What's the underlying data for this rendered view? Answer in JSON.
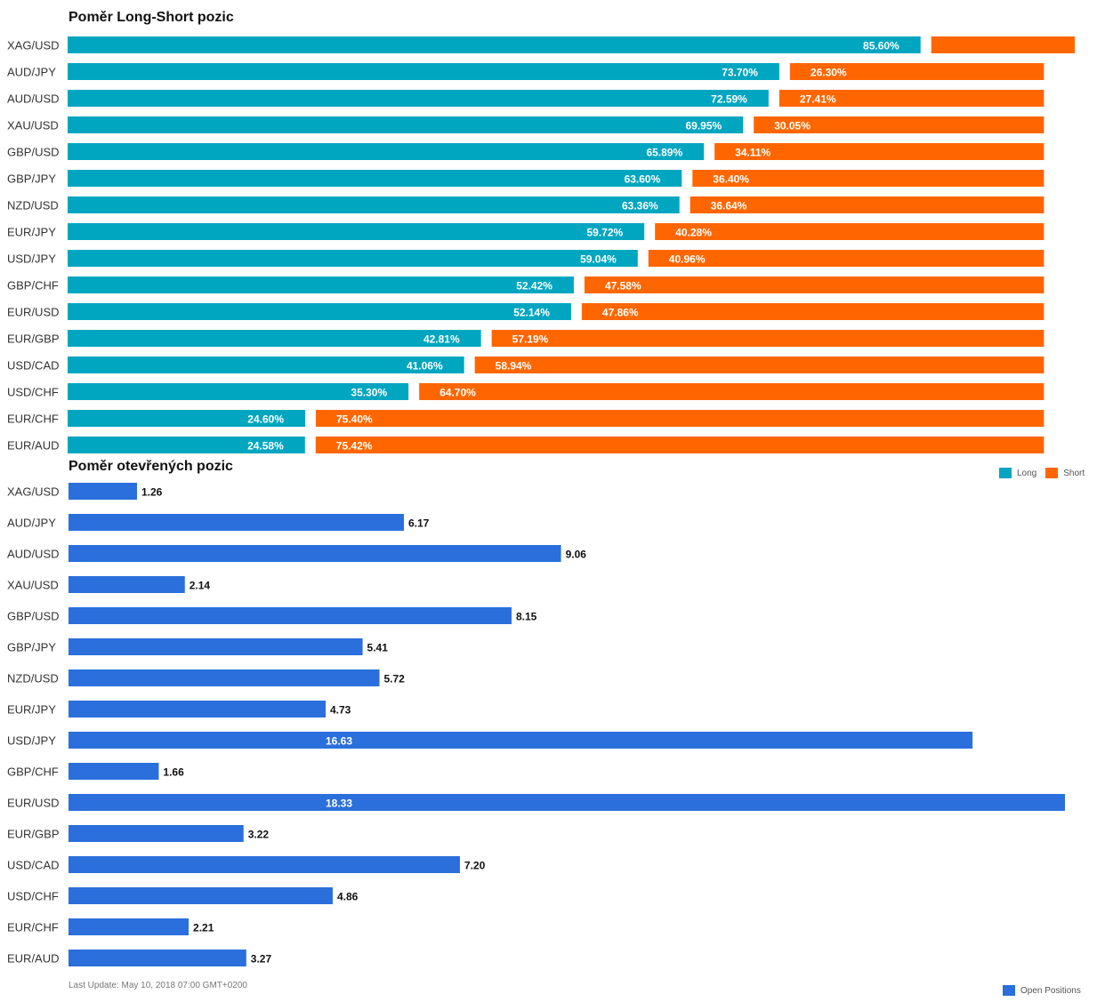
{
  "chart_data": [
    {
      "type": "bar",
      "orientation": "horizontal",
      "stacked": true,
      "title": "Poměr Long-Short pozic",
      "categories": [
        "XAG/USD",
        "AUD/JPY",
        "AUD/USD",
        "XAU/USD",
        "GBP/USD",
        "GBP/JPY",
        "NZD/USD",
        "EUR/JPY",
        "USD/JPY",
        "GBP/CHF",
        "EUR/USD",
        "EUR/GBP",
        "USD/CAD",
        "USD/CHF",
        "EUR/CHF",
        "EUR/AUD"
      ],
      "series": [
        {
          "name": "Long",
          "color": "#00a6c0",
          "values": [
            85.6,
            73.7,
            72.59,
            69.95,
            65.89,
            63.6,
            63.36,
            59.72,
            59.04,
            52.42,
            52.14,
            42.81,
            41.06,
            35.3,
            24.6,
            24.58
          ],
          "labels": [
            "85.60%",
            "73.70%",
            "72.59%",
            "69.95%",
            "65.89%",
            "63.60%",
            "63.36%",
            "59.72%",
            "59.04%",
            "52.42%",
            "52.14%",
            "42.81%",
            "41.06%",
            "35.30%",
            "24.60%",
            "24.58%"
          ]
        },
        {
          "name": "Short",
          "color": "#ff6600",
          "values": [
            14.4,
            26.3,
            27.41,
            30.05,
            34.11,
            36.4,
            36.64,
            40.28,
            40.96,
            47.58,
            47.86,
            57.19,
            58.94,
            64.7,
            75.4,
            75.42
          ],
          "labels": [
            "",
            "26.30%",
            "27.41%",
            "30.05%",
            "34.11%",
            "36.40%",
            "36.64%",
            "40.28%",
            "40.96%",
            "47.58%",
            "47.86%",
            "57.19%",
            "58.94%",
            "64.70%",
            "75.40%",
            "75.42%"
          ]
        }
      ],
      "xlim": [
        0,
        100
      ],
      "grid": false,
      "legend": "bottom-right"
    },
    {
      "type": "bar",
      "orientation": "horizontal",
      "title": "Poměr otevřených pozic",
      "categories": [
        "XAG/USD",
        "AUD/JPY",
        "AUD/USD",
        "XAU/USD",
        "GBP/USD",
        "GBP/JPY",
        "NZD/USD",
        "EUR/JPY",
        "USD/JPY",
        "GBP/CHF",
        "EUR/USD",
        "EUR/GBP",
        "USD/CAD",
        "USD/CHF",
        "EUR/CHF",
        "EUR/AUD"
      ],
      "series": [
        {
          "name": "Open Positions",
          "color": "#2a6fdb",
          "values": [
            1.26,
            6.17,
            9.06,
            2.14,
            8.15,
            5.41,
            5.72,
            4.73,
            16.63,
            1.66,
            18.33,
            3.22,
            7.2,
            4.86,
            2.21,
            3.27
          ],
          "labels": [
            "1.26",
            "6.17",
            "9.06",
            "2.14",
            "8.15",
            "5.41",
            "5.72",
            "4.73",
            "16.63",
            "1.66",
            "18.33",
            "3.22",
            "7.20",
            "4.86",
            "2.21",
            "3.27"
          ]
        }
      ],
      "xlim": [
        0,
        18.33
      ],
      "grid": false,
      "legend": "bottom-right"
    }
  ],
  "footer": "Last Update: May 10, 2018 07:00 GMT+0200",
  "legend_long": "Long",
  "legend_short": "Short",
  "legend_open": "Open Positions"
}
